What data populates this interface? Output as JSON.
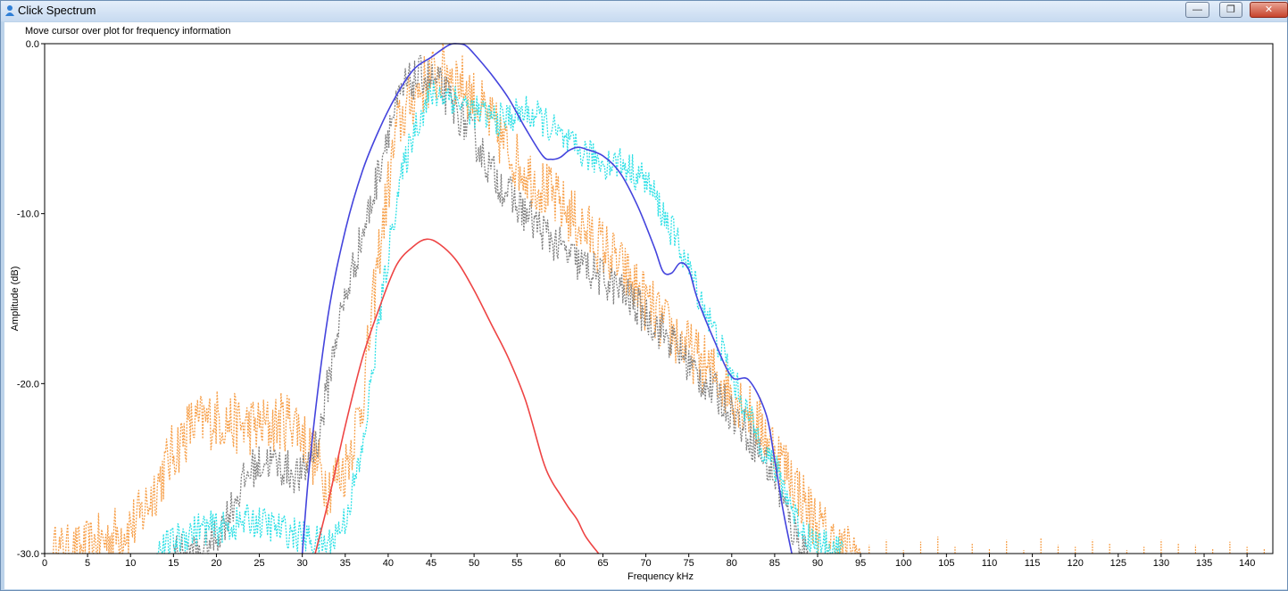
{
  "window": {
    "title": "Click Spectrum",
    "controls": {
      "minimize": "—",
      "maximize": "❐",
      "close": "✕"
    }
  },
  "hint": "Move cursor over plot for frequency information",
  "chart_data": {
    "type": "line",
    "title": "",
    "xlabel": "Frequency kHz",
    "ylabel": "Amplitude (dB)",
    "xlim": [
      0,
      143
    ],
    "ylim": [
      -30,
      0
    ],
    "x_ticks": [
      0,
      5,
      10,
      15,
      20,
      25,
      30,
      35,
      40,
      45,
      50,
      55,
      60,
      65,
      70,
      75,
      80,
      85,
      90,
      95,
      100,
      105,
      110,
      115,
      120,
      125,
      130,
      135,
      140
    ],
    "y_ticks": [
      0,
      -10,
      -20,
      -30
    ],
    "y_tick_labels": [
      "0.0",
      "-10.0",
      "-20.0",
      "-30.0"
    ],
    "grid": false,
    "series": [
      {
        "color": "#f7a04a",
        "style": "dotted",
        "noise": 1.8,
        "x": [
          1,
          4,
          8,
          11,
          13,
          15,
          17,
          20,
          23,
          26,
          29,
          31,
          33,
          35,
          37,
          39,
          41,
          43,
          45,
          47,
          49,
          51,
          53,
          55,
          57,
          60,
          63,
          66,
          69,
          72,
          75,
          78,
          81,
          84,
          87,
          89,
          91,
          93,
          95
        ],
        "y": [
          -30,
          -30,
          -29,
          -28,
          -26,
          -24,
          -22.5,
          -22,
          -22.5,
          -22.5,
          -22,
          -24,
          -26,
          -25,
          -21,
          -12,
          -5,
          -3,
          -2,
          -1.5,
          -2.5,
          -4,
          -5.5,
          -7,
          -8,
          -9.5,
          -11,
          -12.5,
          -14.5,
          -16.5,
          -18,
          -19.5,
          -21,
          -23,
          -25.5,
          -27.5,
          -29,
          -30,
          -30
        ]
      },
      {
        "color": "#808080",
        "style": "dotted",
        "noise": 1.2,
        "x": [
          15,
          18,
          20,
          22,
          24,
          26,
          28,
          30,
          32,
          34,
          36,
          38,
          40,
          42,
          44,
          46,
          48,
          50,
          52,
          55,
          58,
          61,
          64,
          67,
          70,
          73,
          76,
          79,
          82,
          85,
          87,
          89
        ],
        "y": [
          -30,
          -30,
          -29,
          -27,
          -25,
          -24.5,
          -25,
          -25.5,
          -23,
          -17,
          -13,
          -9.5,
          -5,
          -2.5,
          -1.8,
          -2.5,
          -4,
          -5.5,
          -7.5,
          -9.5,
          -11,
          -12.5,
          -13.5,
          -14.5,
          -16,
          -17.5,
          -19.5,
          -21,
          -23,
          -25.5,
          -28.5,
          -30
        ]
      },
      {
        "color": "#2ee0e6",
        "style": "dotted",
        "noise": 1.0,
        "x": [
          13,
          16,
          18,
          21,
          24,
          27,
          30,
          33,
          35,
          37,
          39,
          41,
          43,
          45,
          47,
          50,
          53,
          56,
          58,
          61,
          63,
          65,
          67,
          70,
          72,
          74,
          76,
          78,
          80,
          82,
          84,
          86,
          88,
          90,
          93
        ],
        "y": [
          -30,
          -29,
          -28.5,
          -28.5,
          -28,
          -28.5,
          -29,
          -29.5,
          -28,
          -24,
          -16,
          -9,
          -5,
          -3,
          -3,
          -4,
          -4.5,
          -4,
          -4.5,
          -6,
          -6.5,
          -7,
          -7,
          -8,
          -10,
          -12,
          -14.5,
          -17,
          -19.5,
          -22,
          -24,
          -26,
          -28.5,
          -29.5,
          -30
        ]
      },
      {
        "color": "#4444dd",
        "style": "solid",
        "noise": 0,
        "x": [
          30,
          31,
          33,
          35,
          37,
          39,
          41,
          43,
          45,
          47,
          48,
          49,
          50,
          52,
          54,
          56,
          58,
          59,
          60,
          61,
          62,
          63,
          65,
          67,
          69,
          71,
          72,
          73,
          74,
          75,
          76,
          78,
          80,
          82,
          84,
          85,
          86,
          87
        ],
        "y": [
          -30,
          -24,
          -16,
          -11,
          -7.5,
          -5,
          -3,
          -1.5,
          -0.8,
          -0.1,
          0,
          -0.1,
          -0.6,
          -1.8,
          -3.2,
          -5,
          -6.6,
          -6.8,
          -6.7,
          -6.3,
          -6.1,
          -6.2,
          -6.6,
          -7.6,
          -9.5,
          -12,
          -13.4,
          -13.5,
          -12.9,
          -13.3,
          -15,
          -17.5,
          -19.6,
          -19.8,
          -21.8,
          -24.5,
          -27.5,
          -30
        ]
      },
      {
        "color": "#ee4444",
        "style": "solid",
        "noise": 0,
        "x": [
          31.5,
          33,
          35,
          37,
          39,
          41,
          43,
          44.5,
          46,
          48,
          50,
          52,
          54,
          56,
          58,
          59,
          60,
          61,
          62,
          63,
          64.5
        ],
        "y": [
          -30,
          -27,
          -22.5,
          -18.5,
          -15.5,
          -13,
          -11.9,
          -11.5,
          -11.8,
          -12.8,
          -14.5,
          -16.5,
          -18.5,
          -21,
          -24.5,
          -25.7,
          -26.5,
          -27.3,
          -28,
          -29,
          -30
        ]
      }
    ],
    "noise_spikes": {
      "color": "#f7a04a",
      "x": [
        96,
        98,
        100,
        102,
        104,
        106,
        108,
        110,
        112,
        114,
        116,
        118,
        120,
        122,
        124,
        126,
        128,
        130,
        132,
        134,
        136,
        138,
        140,
        142
      ],
      "y": [
        -29.5,
        -29.2,
        -29.8,
        -29.3,
        -29,
        -29.6,
        -29.4,
        -29.7,
        -29.2,
        -29.8,
        -29.1,
        -29.5,
        -29.6,
        -29.2,
        -29.4,
        -29.8,
        -29.6,
        -29.2,
        -29.4,
        -29.5,
        -29.7,
        -29.3,
        -29.6,
        -29.7
      ]
    }
  }
}
